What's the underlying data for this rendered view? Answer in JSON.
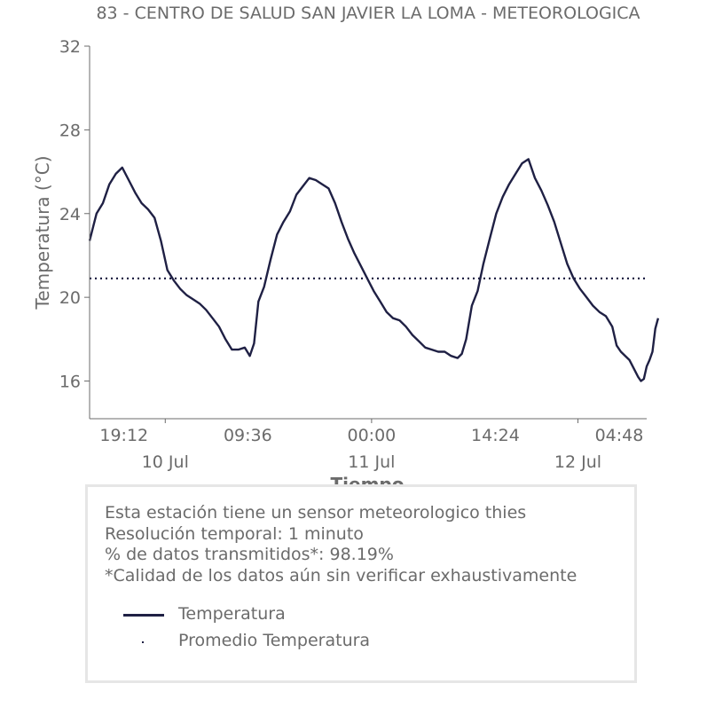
{
  "chart_data": {
    "type": "line",
    "title": "83 - CENTRO DE SALUD SAN JAVIER LA LOMA - METEOROLOGICA",
    "xlabel": "Tiempo",
    "ylabel": "Temperatura (°C)",
    "ylim": [
      14.2,
      32
    ],
    "yticks": [
      16,
      20,
      24,
      28,
      32
    ],
    "xlim": [
      "2023-07-09T15:12",
      "2023-07-12T08:00"
    ],
    "xticks": [
      {
        "time": "2023-07-09T19:12",
        "label": "19:12"
      },
      {
        "time": "2023-07-10T09:36",
        "label": "09:36"
      },
      {
        "time": "2023-07-11T00:00",
        "label": "00:00"
      },
      {
        "time": "2023-07-11T14:24",
        "label": "14:24"
      },
      {
        "time": "2023-07-12T04:48",
        "label": "04:48"
      }
    ],
    "date_labels": [
      {
        "time": "2023-07-10T00:00",
        "label": "10 Jul"
      },
      {
        "time": "2023-07-11T00:00",
        "label": "11 Jul"
      },
      {
        "time": "2023-07-12T00:00",
        "label": "12 Jul"
      }
    ],
    "grid": false,
    "series": [
      {
        "name": "Temperatura",
        "color": "#1f2044",
        "style": "solid",
        "points": [
          [
            "2023-07-09T15:12",
            22.7
          ],
          [
            "2023-07-09T16:00",
            24.0
          ],
          [
            "2023-07-09T16:45",
            24.5
          ],
          [
            "2023-07-09T17:30",
            25.4
          ],
          [
            "2023-07-09T18:15",
            25.9
          ],
          [
            "2023-07-09T19:00",
            26.2
          ],
          [
            "2023-07-09T19:45",
            25.6
          ],
          [
            "2023-07-09T20:30",
            25.0
          ],
          [
            "2023-07-09T21:15",
            24.5
          ],
          [
            "2023-07-09T22:00",
            24.2
          ],
          [
            "2023-07-09T22:45",
            23.8
          ],
          [
            "2023-07-09T23:30",
            22.7
          ],
          [
            "2023-07-10T00:15",
            21.3
          ],
          [
            "2023-07-10T01:00",
            20.8
          ],
          [
            "2023-07-10T01:45",
            20.4
          ],
          [
            "2023-07-10T02:30",
            20.1
          ],
          [
            "2023-07-10T03:15",
            19.9
          ],
          [
            "2023-07-10T04:00",
            19.7
          ],
          [
            "2023-07-10T04:45",
            19.4
          ],
          [
            "2023-07-10T05:30",
            19.0
          ],
          [
            "2023-07-10T06:15",
            18.6
          ],
          [
            "2023-07-10T07:00",
            18.0
          ],
          [
            "2023-07-10T07:45",
            17.5
          ],
          [
            "2023-07-10T08:30",
            17.5
          ],
          [
            "2023-07-10T09:15",
            17.6
          ],
          [
            "2023-07-10T09:50",
            17.2
          ],
          [
            "2023-07-10T10:20",
            17.8
          ],
          [
            "2023-07-10T10:50",
            19.8
          ],
          [
            "2023-07-10T11:30",
            20.5
          ],
          [
            "2023-07-10T12:15",
            21.8
          ],
          [
            "2023-07-10T13:00",
            23.0
          ],
          [
            "2023-07-10T13:45",
            23.6
          ],
          [
            "2023-07-10T14:30",
            24.1
          ],
          [
            "2023-07-10T15:15",
            24.9
          ],
          [
            "2023-07-10T16:00",
            25.3
          ],
          [
            "2023-07-10T16:45",
            25.7
          ],
          [
            "2023-07-10T17:30",
            25.6
          ],
          [
            "2023-07-10T18:15",
            25.4
          ],
          [
            "2023-07-10T19:00",
            25.2
          ],
          [
            "2023-07-10T19:45",
            24.5
          ],
          [
            "2023-07-10T20:30",
            23.6
          ],
          [
            "2023-07-10T21:15",
            22.8
          ],
          [
            "2023-07-10T22:00",
            22.1
          ],
          [
            "2023-07-10T22:45",
            21.5
          ],
          [
            "2023-07-10T23:30",
            20.9
          ],
          [
            "2023-07-11T00:15",
            20.3
          ],
          [
            "2023-07-11T01:00",
            19.8
          ],
          [
            "2023-07-11T01:45",
            19.3
          ],
          [
            "2023-07-11T02:30",
            19.0
          ],
          [
            "2023-07-11T03:15",
            18.9
          ],
          [
            "2023-07-11T04:00",
            18.6
          ],
          [
            "2023-07-11T04:45",
            18.2
          ],
          [
            "2023-07-11T05:30",
            17.9
          ],
          [
            "2023-07-11T06:15",
            17.6
          ],
          [
            "2023-07-11T07:00",
            17.5
          ],
          [
            "2023-07-11T07:45",
            17.4
          ],
          [
            "2023-07-11T08:30",
            17.4
          ],
          [
            "2023-07-11T09:15",
            17.2
          ],
          [
            "2023-07-11T10:00",
            17.1
          ],
          [
            "2023-07-11T10:30",
            17.3
          ],
          [
            "2023-07-11T11:00",
            18.0
          ],
          [
            "2023-07-11T11:40",
            19.6
          ],
          [
            "2023-07-11T12:20",
            20.3
          ],
          [
            "2023-07-11T13:00",
            21.6
          ],
          [
            "2023-07-11T13:45",
            22.8
          ],
          [
            "2023-07-11T14:30",
            24.0
          ],
          [
            "2023-07-11T15:15",
            24.8
          ],
          [
            "2023-07-11T16:00",
            25.4
          ],
          [
            "2023-07-11T16:45",
            25.9
          ],
          [
            "2023-07-11T17:30",
            26.4
          ],
          [
            "2023-07-11T18:15",
            26.6
          ],
          [
            "2023-07-11T19:00",
            25.7
          ],
          [
            "2023-07-11T19:45",
            25.1
          ],
          [
            "2023-07-11T20:30",
            24.4
          ],
          [
            "2023-07-11T21:15",
            23.6
          ],
          [
            "2023-07-11T22:00",
            22.6
          ],
          [
            "2023-07-11T22:45",
            21.6
          ],
          [
            "2023-07-11T23:30",
            20.9
          ],
          [
            "2023-07-12T00:15",
            20.4
          ],
          [
            "2023-07-12T01:00",
            20.0
          ],
          [
            "2023-07-12T01:45",
            19.6
          ],
          [
            "2023-07-12T02:30",
            19.3
          ],
          [
            "2023-07-12T03:15",
            19.1
          ],
          [
            "2023-07-12T04:00",
            18.6
          ],
          [
            "2023-07-12T04:30",
            17.7
          ],
          [
            "2023-07-12T05:00",
            17.4
          ],
          [
            "2023-07-12T05:30",
            17.2
          ],
          [
            "2023-07-12T06:00",
            17.0
          ],
          [
            "2023-07-12T06:30",
            16.6
          ],
          [
            "2023-07-12T07:00",
            16.2
          ],
          [
            "2023-07-12T07:20",
            16.0
          ],
          [
            "2023-07-12T07:40",
            16.1
          ],
          [
            "2023-07-12T08:00",
            16.7
          ],
          [
            "2023-07-12T08:20",
            17.0
          ],
          [
            "2023-07-12T08:40",
            17.4
          ],
          [
            "2023-07-12T09:00",
            18.5
          ],
          [
            "2023-07-12T09:20",
            19.0
          ]
        ]
      },
      {
        "name": "Promedio Temperatura",
        "color": "#1f2044",
        "style": "dotted",
        "constant": 20.9
      }
    ]
  },
  "info": {
    "lines": [
      "Esta estación tiene un sensor meteorologico thies",
      "Resolución temporal: 1 minuto",
      "% de datos transmitidos*: 98.19%",
      "*Calidad de los datos aún sin verificar exhaustivamente"
    ],
    "legend": [
      {
        "label": "Temperatura",
        "symbol": "solid-line"
      },
      {
        "label": "Promedio Temperatura",
        "symbol": "dot"
      }
    ]
  }
}
